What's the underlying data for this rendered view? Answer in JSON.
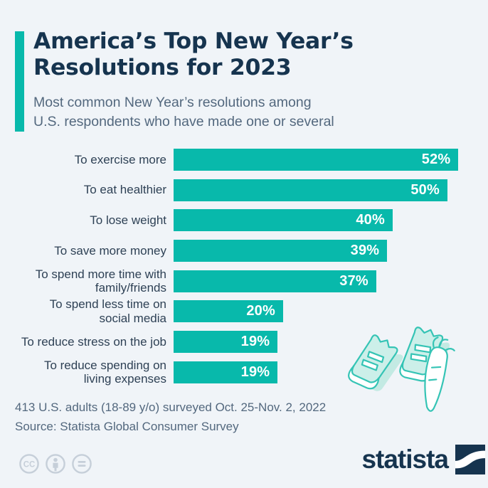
{
  "header": {
    "title_line1": "America’s Top New Year’s",
    "title_line2": "Resolutions for 2023",
    "subtitle_line1": "Most common New Year’s resolutions among",
    "subtitle_line2": "U.S. respondents who have made one or several"
  },
  "chart_data": {
    "type": "bar",
    "orientation": "horizontal",
    "unit": "%",
    "xlim": [
      0,
      56
    ],
    "grid": false,
    "legend": false,
    "title": "America’s Top New Year’s Resolutions for 2023",
    "subtitle": "Most common New Year’s resolutions among U.S. respondents who have made one or several",
    "categories": [
      "To exercise more",
      "To eat healthier",
      "To lose weight",
      "To save more money",
      "To spend more time with family/friends",
      "To spend less time on social media",
      "To reduce stress on the job",
      "To reduce spending on living expenses"
    ],
    "values": [
      52,
      50,
      40,
      39,
      37,
      20,
      19,
      19
    ],
    "rows": [
      {
        "label": "To exercise more",
        "value": 52,
        "display": "52%"
      },
      {
        "label": "To eat healthier",
        "value": 50,
        "display": "50%"
      },
      {
        "label": "To lose weight",
        "value": 40,
        "display": "40%"
      },
      {
        "label": "To save more money",
        "value": 39,
        "display": "39%"
      },
      {
        "label": "To spend more time with\nfamily/friends",
        "value": 37,
        "display": "37%"
      },
      {
        "label": "To spend less time on\nsocial media",
        "value": 20,
        "display": "20%"
      },
      {
        "label": "To reduce stress on the job",
        "value": 19,
        "display": "19%"
      },
      {
        "label": "To reduce spending on\nliving expenses",
        "value": 19,
        "display": "19%"
      }
    ],
    "bar_color": "#08b9ab",
    "value_label_color": "#ffffff"
  },
  "footer": {
    "note": "413 U.S. adults (18-89 y/o) surveyed Oct. 25-Nov. 2, 2022",
    "source": "Source: Statista Global Consumer Survey",
    "brand": "statista",
    "license_icons": [
      "cc",
      "attribution",
      "no-derivatives"
    ]
  },
  "colors": {
    "background": "#f0f4f8",
    "accent": "#08b9ab",
    "title": "#16344f",
    "subtitle": "#53687e",
    "bar_label": "#2e4155",
    "footer_text": "#53687e",
    "license_icon": "#c6cfd9",
    "illustration_fill": "#ccefe9",
    "illustration_stroke": "#35c4b5"
  }
}
